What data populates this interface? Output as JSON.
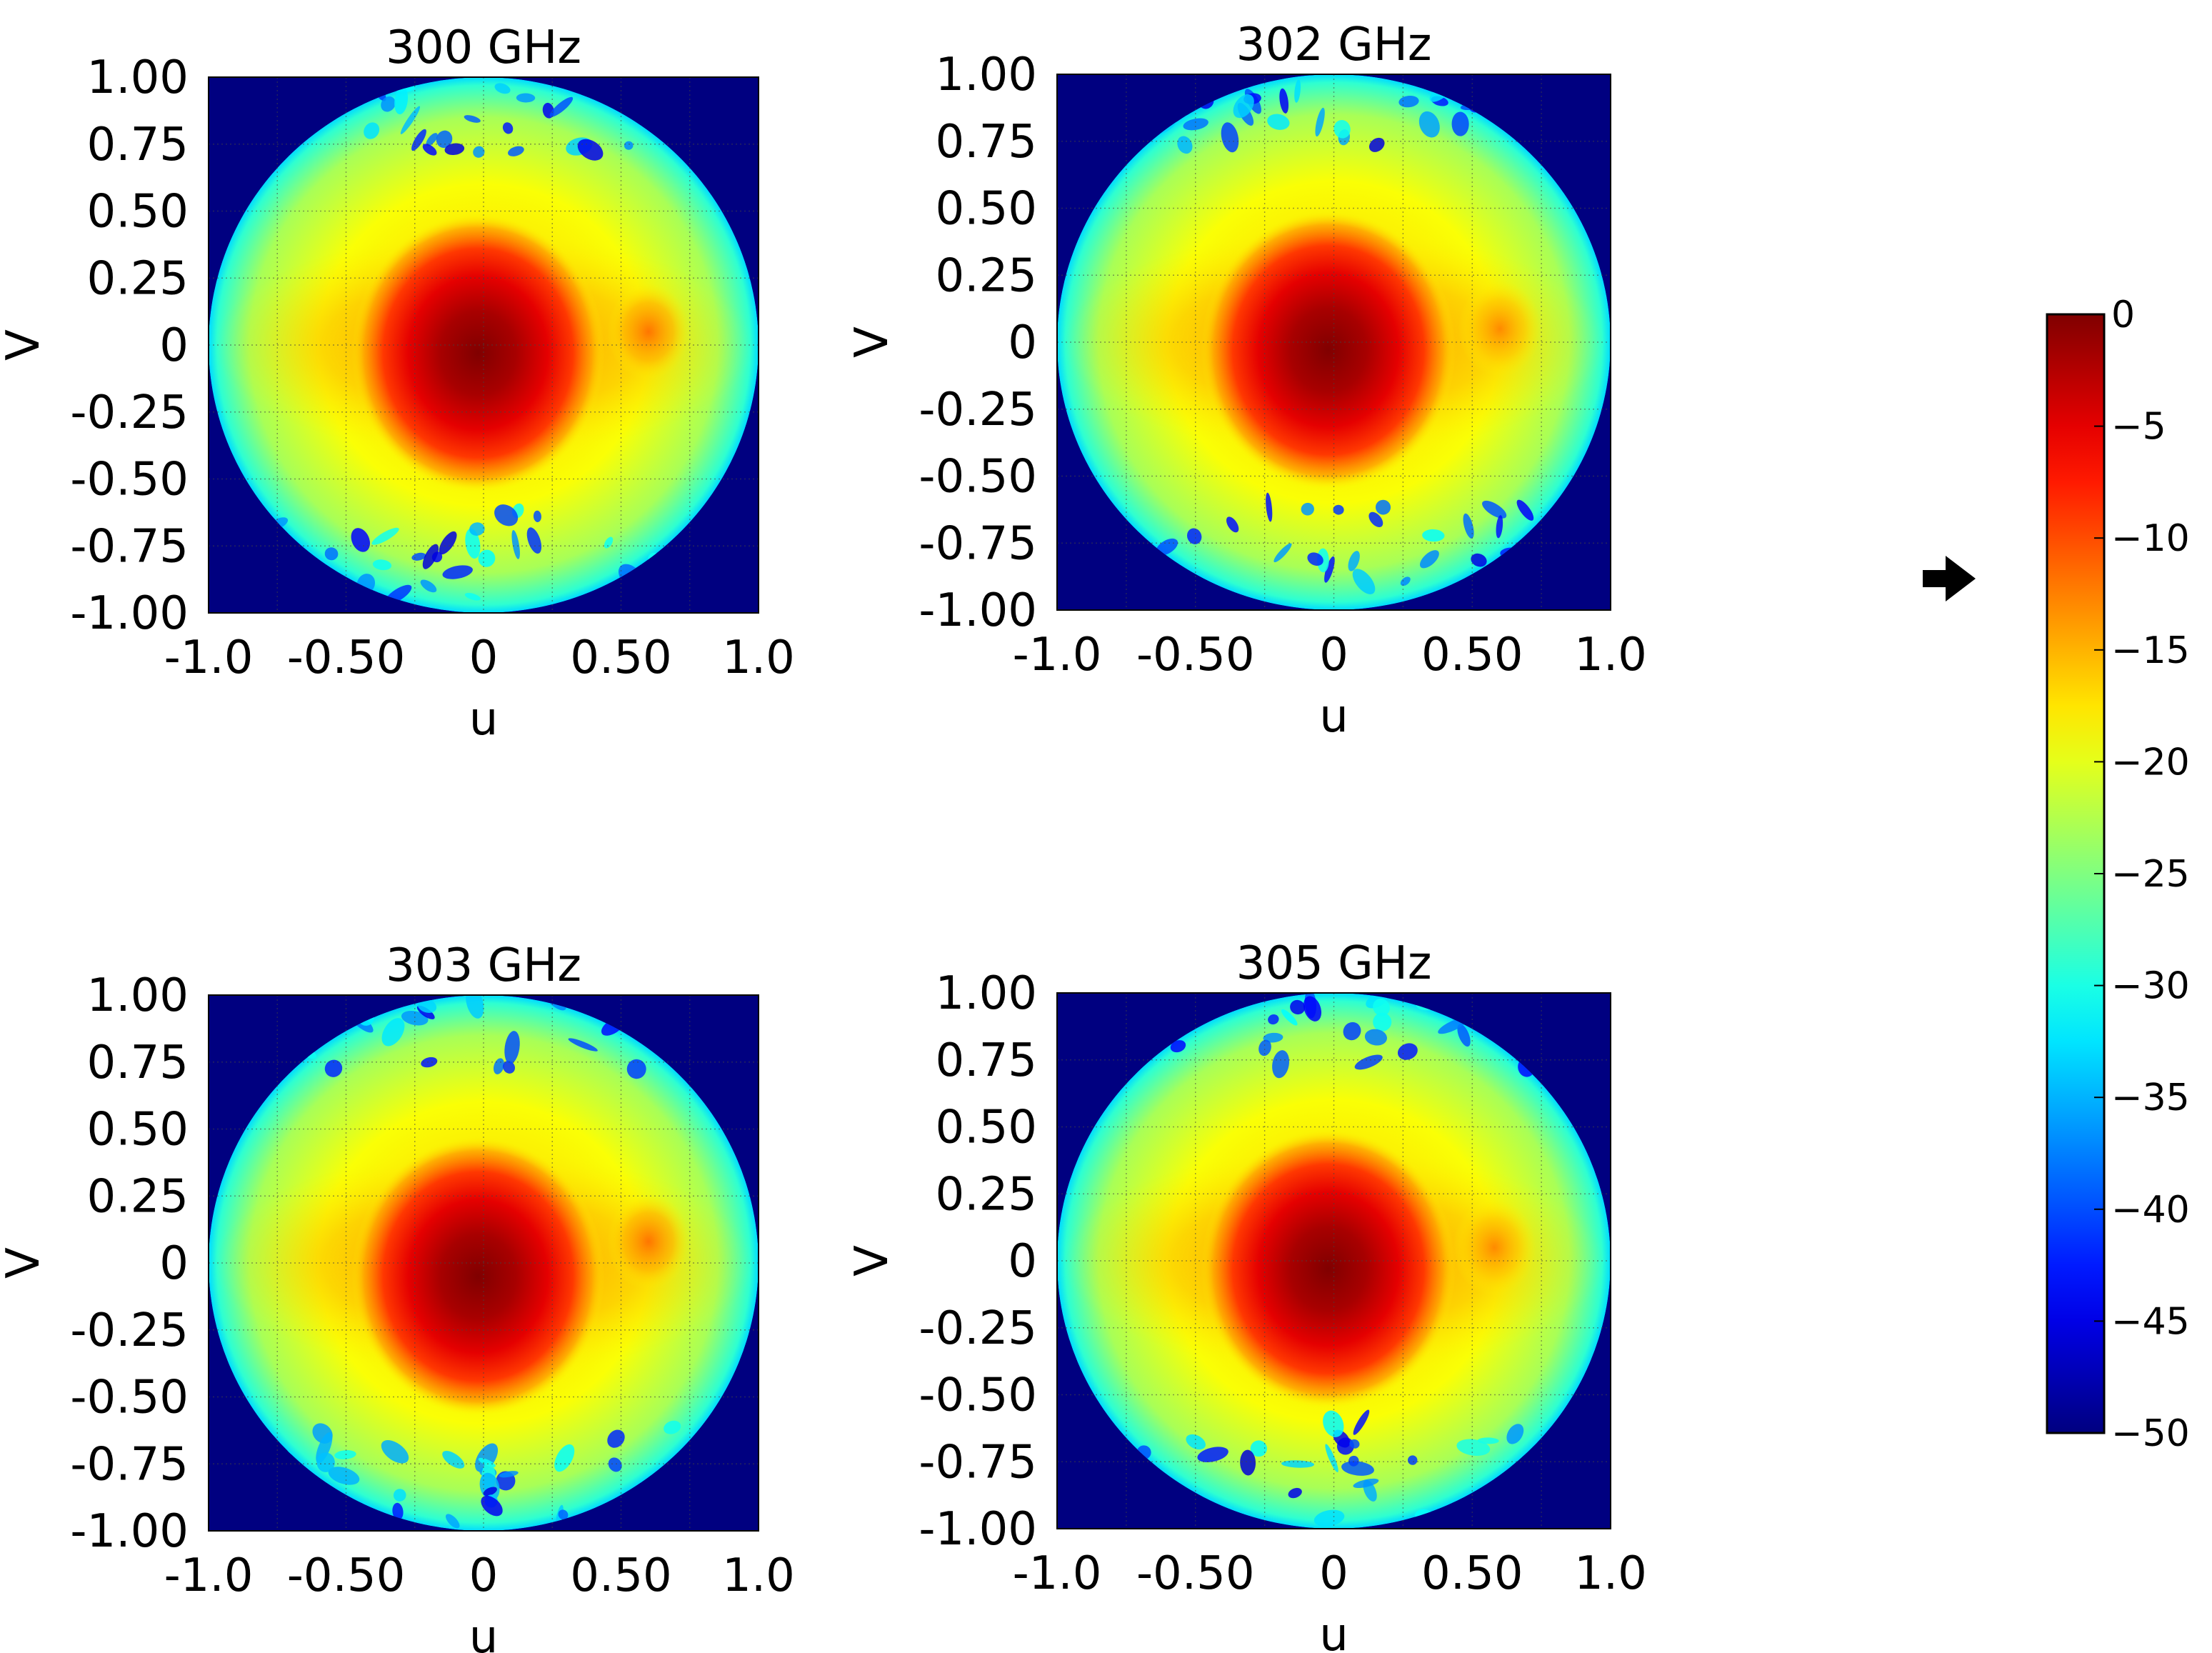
{
  "chart_data": [
    {
      "type": "heatmap",
      "title": "300 GHz",
      "xlabel": "u",
      "ylabel": "V",
      "xlim": [
        -1.0,
        1.0
      ],
      "ylim": [
        -1.0,
        1.0
      ],
      "xticks": [
        "-1.0",
        "-0.50",
        "0",
        "0.50",
        "1.0"
      ],
      "yticks": [
        "1.00",
        "0.75",
        "0.50",
        "0.25",
        "0",
        "-0.25",
        "-0.50",
        "-0.75",
        "-1.00"
      ],
      "grid": true,
      "main_lobe": {
        "u": -0.02,
        "v": -0.03,
        "peak_db": 0
      },
      "side_lobe": {
        "u": 0.6,
        "v": 0.05,
        "level_db": -12
      },
      "floor_db": -50
    },
    {
      "type": "heatmap",
      "title": "302 GHz",
      "xlabel": "u",
      "ylabel": "V",
      "xlim": [
        -1.0,
        1.0
      ],
      "ylim": [
        -1.0,
        1.0
      ],
      "xticks": [
        "-1.0",
        "-0.50",
        "0",
        "0.50",
        "1.0"
      ],
      "yticks": [
        "1.00",
        "0.75",
        "0.50",
        "0.25",
        "0",
        "-0.25",
        "-0.50",
        "-0.75",
        "-1.00"
      ],
      "grid": true,
      "main_lobe": {
        "u": -0.02,
        "v": -0.03,
        "peak_db": 0
      },
      "side_lobe": {
        "u": 0.6,
        "v": 0.05,
        "level_db": -13
      },
      "floor_db": -50
    },
    {
      "type": "heatmap",
      "title": "303 GHz",
      "xlabel": "u",
      "ylabel": "V",
      "xlim": [
        -1.0,
        1.0
      ],
      "ylim": [
        -1.0,
        1.0
      ],
      "xticks": [
        "-1.0",
        "-0.50",
        "0",
        "0.50",
        "1.0"
      ],
      "yticks": [
        "1.00",
        "0.75",
        "0.50",
        "0.25",
        "0",
        "-0.25",
        "-0.50",
        "-0.75",
        "-1.00"
      ],
      "grid": true,
      "main_lobe": {
        "u": -0.02,
        "v": -0.05,
        "peak_db": 0
      },
      "side_lobe": {
        "u": 0.6,
        "v": 0.08,
        "level_db": -12
      },
      "floor_db": -50
    },
    {
      "type": "heatmap",
      "title": "305 GHz",
      "xlabel": "u",
      "ylabel": "V",
      "xlim": [
        -1.0,
        1.0
      ],
      "ylim": [
        -1.0,
        1.0
      ],
      "xticks": [
        "-1.0",
        "-0.50",
        "0",
        "0.50",
        "1.0"
      ],
      "yticks": [
        "1.00",
        "0.75",
        "0.50",
        "0.25",
        "0",
        "-0.25",
        "-0.50",
        "-0.75",
        "-1.00"
      ],
      "grid": true,
      "main_lobe": {
        "u": -0.02,
        "v": -0.03,
        "peak_db": 0
      },
      "side_lobe": {
        "u": 0.58,
        "v": 0.05,
        "level_db": -13
      },
      "floor_db": -50
    }
  ],
  "colorbar": {
    "min": -50,
    "max": 0,
    "ticks": [
      "0",
      "−5",
      "−10",
      "−15",
      "−20",
      "−25",
      "−30",
      "−35",
      "−40",
      "−45",
      "−50"
    ],
    "colormap": "jet",
    "stops": [
      "#00007f",
      "#0000ff",
      "#007fff",
      "#00ffff",
      "#7fff7f",
      "#ffff00",
      "#ff7f00",
      "#ff0000",
      "#7f0000"
    ]
  },
  "pointer_icon": "arrow-right-icon"
}
